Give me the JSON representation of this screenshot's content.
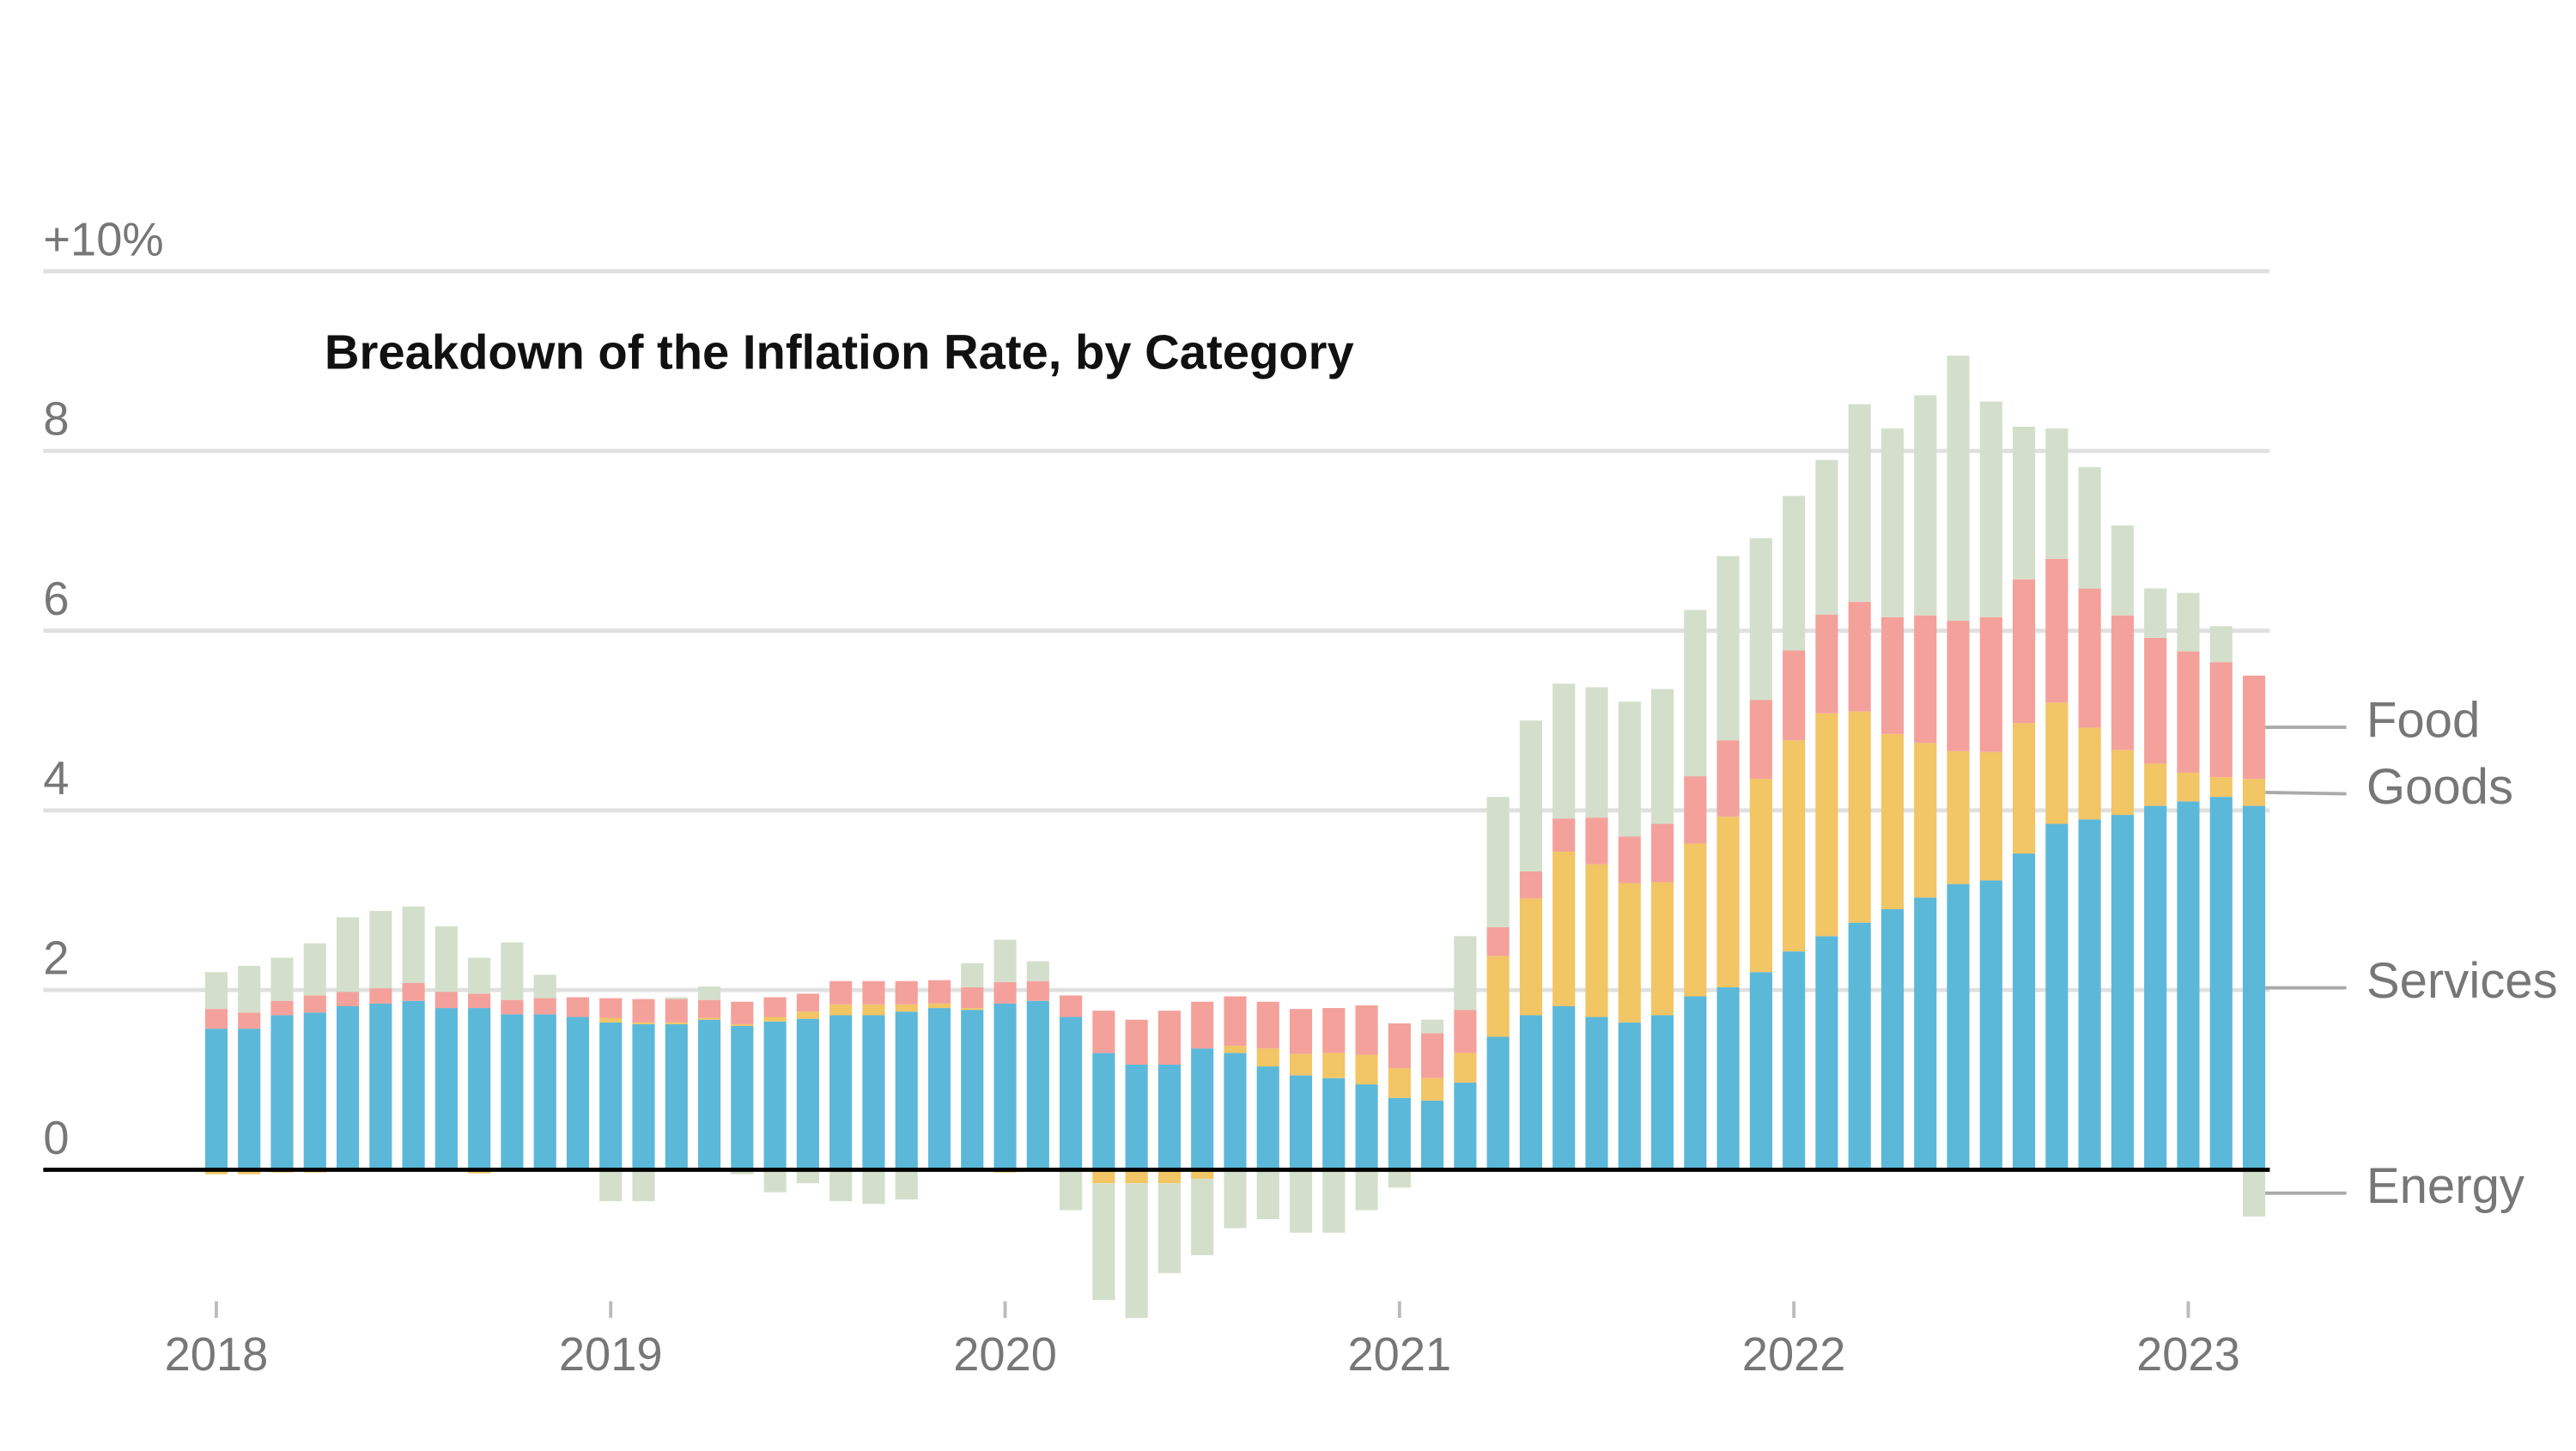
{
  "chart_data": {
    "type": "stacked-bar",
    "title": "Breakdown of the Inflation Rate, by Category",
    "categories": [
      "2018",
      null,
      null,
      null,
      null,
      null,
      null,
      null,
      null,
      null,
      null,
      null,
      "2019",
      null,
      null,
      null,
      null,
      null,
      null,
      null,
      null,
      null,
      null,
      null,
      "2020",
      null,
      null,
      null,
      null,
      null,
      null,
      null,
      null,
      null,
      null,
      null,
      "2021",
      null,
      null,
      null,
      null,
      null,
      null,
      null,
      null,
      null,
      null,
      null,
      "2022",
      null,
      null,
      null,
      null,
      null,
      null,
      null,
      null,
      null,
      null,
      null,
      "2023",
      null,
      null
    ],
    "series": [
      {
        "name": "Services",
        "color": "#5cb8d9",
        "values": [
          1.57,
          1.57,
          1.72,
          1.75,
          1.82,
          1.85,
          1.88,
          1.8,
          1.8,
          1.73,
          1.73,
          1.7,
          1.64,
          1.62,
          1.62,
          1.67,
          1.6,
          1.65,
          1.68,
          1.72,
          1.72,
          1.76,
          1.8,
          1.78,
          1.85,
          1.88,
          1.7,
          1.3,
          1.17,
          1.17,
          1.35,
          1.3,
          1.15,
          1.05,
          1.02,
          0.95,
          0.8,
          0.77,
          0.97,
          1.48,
          1.72,
          1.82,
          1.7,
          1.64,
          1.72,
          1.93,
          2.03,
          2.2,
          2.43,
          2.6,
          2.75,
          2.9,
          3.03,
          3.18,
          3.22,
          3.52,
          3.85,
          3.9,
          3.95,
          4.05,
          4.1,
          4.15,
          4.05
        ]
      },
      {
        "name": "Goods",
        "color": "#f2c565",
        "values": [
          -0.05,
          -0.05,
          -0.03,
          -0.03,
          -0.02,
          -0.02,
          0,
          -0.02,
          -0.04,
          0,
          0,
          0,
          0.05,
          0.02,
          0.02,
          0.02,
          0.02,
          0.05,
          0.08,
          0.12,
          0.12,
          0.08,
          0.05,
          0.02,
          -0.03,
          0,
          0,
          -0.15,
          -0.15,
          -0.15,
          -0.1,
          0.08,
          0.2,
          0.24,
          0.28,
          0.33,
          0.33,
          0.25,
          0.33,
          0.9,
          1.3,
          1.72,
          1.7,
          1.55,
          1.48,
          1.7,
          1.9,
          2.15,
          2.35,
          2.48,
          2.35,
          1.95,
          1.72,
          1.48,
          1.43,
          1.45,
          1.35,
          1.02,
          0.72,
          0.47,
          0.32,
          0.22,
          0.3
        ]
      },
      {
        "name": "Food",
        "color": "#f4a19c",
        "values": [
          0.22,
          0.18,
          0.16,
          0.19,
          0.16,
          0.17,
          0.2,
          0.18,
          0.16,
          0.16,
          0.18,
          0.22,
          0.22,
          0.26,
          0.26,
          0.2,
          0.25,
          0.22,
          0.2,
          0.26,
          0.26,
          0.26,
          0.26,
          0.23,
          0.24,
          0.22,
          0.24,
          0.47,
          0.5,
          0.6,
          0.52,
          0.55,
          0.52,
          0.5,
          0.5,
          0.55,
          0.5,
          0.5,
          0.48,
          0.32,
          0.3,
          0.37,
          0.52,
          0.52,
          0.65,
          0.75,
          0.85,
          0.88,
          1.0,
          1.1,
          1.22,
          1.3,
          1.42,
          1.45,
          1.5,
          1.6,
          1.6,
          1.55,
          1.5,
          1.4,
          1.35,
          1.28,
          1.15
        ]
      },
      {
        "name": "Energy",
        "color": "#d4dfcb",
        "values": [
          0.41,
          0.52,
          0.48,
          0.58,
          0.83,
          0.86,
          0.85,
          0.73,
          0.4,
          0.64,
          0.26,
          -0.02,
          -0.35,
          -0.35,
          0.02,
          0.15,
          -0.05,
          -0.25,
          -0.15,
          -0.35,
          -0.38,
          -0.33,
          0,
          0.27,
          0.47,
          0.22,
          -0.45,
          -1.3,
          -1.5,
          -1.0,
          -0.85,
          -0.65,
          -0.55,
          -0.7,
          -0.7,
          -0.45,
          -0.2,
          0.15,
          0.82,
          1.45,
          1.68,
          1.5,
          1.45,
          1.5,
          1.5,
          1.85,
          2.05,
          1.8,
          1.72,
          1.72,
          2.2,
          2.1,
          2.45,
          2.95,
          2.4,
          1.7,
          1.45,
          1.35,
          1.0,
          0.55,
          0.65,
          0.4,
          -0.52
        ]
      }
    ],
    "ylim": [
      -1.7,
      10
    ],
    "yticks": [
      0,
      2,
      4,
      6,
      8,
      {
        "value": 10,
        "label": "+10%"
      }
    ],
    "grid": true
  }
}
